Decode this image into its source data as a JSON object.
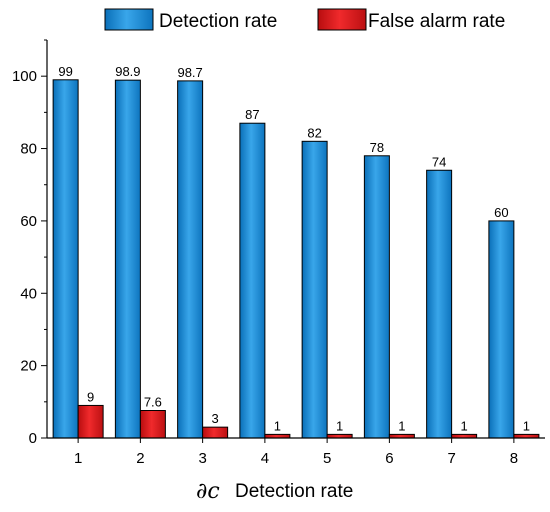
{
  "chart_data": {
    "type": "bar",
    "categories": [
      "1",
      "2",
      "3",
      "4",
      "5",
      "6",
      "7",
      "8"
    ],
    "series": [
      {
        "name": "Detection rate",
        "values": [
          99,
          98.9,
          98.7,
          87,
          82,
          78,
          74,
          60
        ],
        "labels": [
          "99",
          "98.9",
          "98.7",
          "87",
          "82",
          "78",
          "74",
          "60"
        ],
        "color": "#1f8fd6"
      },
      {
        "name": "False alarm rate",
        "values": [
          9,
          7.6,
          3,
          1,
          1,
          1,
          1,
          1
        ],
        "labels": [
          "9",
          "7.6",
          "3",
          "1",
          "1",
          "1",
          "1",
          "1"
        ],
        "color": "#e0181a"
      }
    ],
    "title": "",
    "xlabel_symbol": "∂c",
    "xlabel": "Detection rate",
    "ylabel": "",
    "ylim": [
      0,
      110
    ],
    "yticks": [
      0,
      20,
      40,
      60,
      80,
      100
    ],
    "legend_position": "top",
    "grid": false
  }
}
